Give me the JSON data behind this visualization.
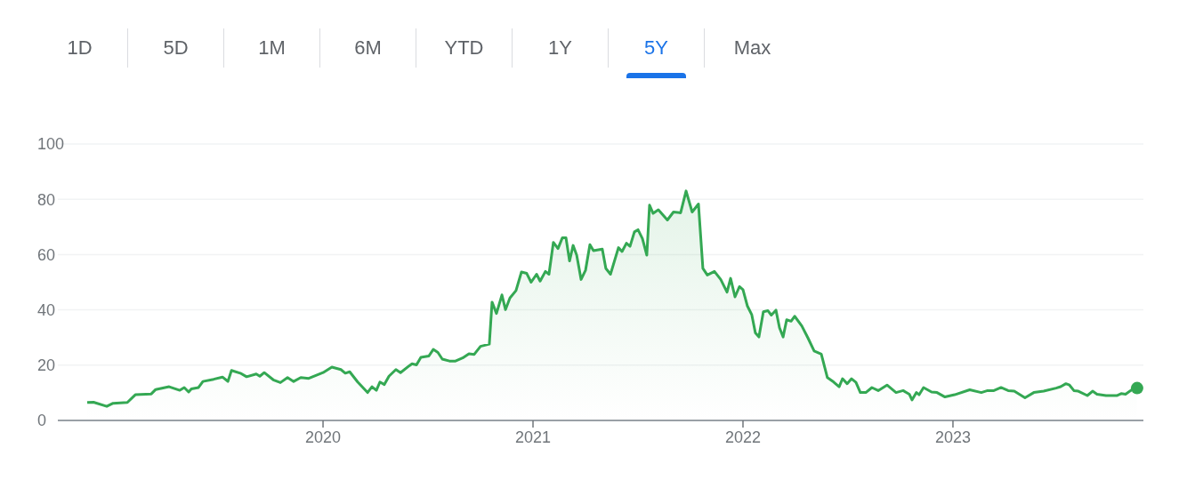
{
  "chart_data": {
    "type": "area",
    "annotations": [
      "1D",
      "5D",
      "1M",
      "6M",
      "YTD",
      "1Y",
      "5Y",
      "Max"
    ],
    "x": [
      2018.877,
      2018.907,
      2018.97,
      2019.0,
      2019.068,
      2019.106,
      2019.182,
      2019.203,
      2019.267,
      2019.318,
      2019.339,
      2019.36,
      2019.373,
      2019.407,
      2019.428,
      2019.479,
      2019.521,
      2019.547,
      2019.564,
      2019.606,
      2019.636,
      2019.682,
      2019.699,
      2019.72,
      2019.763,
      2019.797,
      2019.831,
      2019.86,
      2019.894,
      2019.932,
      2020.0,
      2020.042,
      2020.085,
      2020.106,
      2020.127,
      2020.165,
      2020.212,
      2020.233,
      2020.254,
      2020.271,
      2020.292,
      2020.314,
      2020.347,
      2020.369,
      2020.411,
      2020.424,
      2020.445,
      2020.466,
      2020.504,
      2020.525,
      2020.547,
      2020.568,
      2020.602,
      2020.631,
      2020.665,
      2020.695,
      2020.72,
      2020.75,
      2020.792,
      2020.805,
      2020.826,
      2020.852,
      2020.869,
      2020.89,
      2020.919,
      2020.945,
      2020.97,
      2020.991,
      2021.017,
      2021.034,
      2021.059,
      2021.076,
      2021.097,
      2021.119,
      2021.14,
      2021.157,
      2021.174,
      2021.191,
      2021.208,
      2021.229,
      2021.25,
      2021.271,
      2021.288,
      2021.33,
      2021.347,
      2021.369,
      2021.407,
      2021.424,
      2021.445,
      2021.462,
      2021.483,
      2021.5,
      2021.521,
      2021.542,
      2021.555,
      2021.572,
      2021.597,
      2021.64,
      2021.669,
      2021.703,
      2021.729,
      2021.758,
      2021.788,
      2021.809,
      2021.83,
      2021.864,
      2021.894,
      2021.924,
      2021.941,
      2021.962,
      2021.983,
      2022.0,
      2022.021,
      2022.042,
      2022.059,
      2022.076,
      2022.097,
      2022.119,
      2022.135,
      2022.157,
      2022.174,
      2022.191,
      2022.208,
      2022.229,
      2022.246,
      2022.28,
      2022.309,
      2022.339,
      2022.373,
      2022.402,
      2022.432,
      2022.458,
      2022.474,
      2022.496,
      2022.517,
      2022.538,
      2022.559,
      2022.585,
      2022.614,
      2022.644,
      2022.686,
      2022.729,
      2022.763,
      2022.792,
      2022.805,
      2022.826,
      2022.839,
      2022.86,
      2022.898,
      2022.924,
      2022.962,
      2023.008,
      2023.08,
      2023.135,
      2023.165,
      2023.195,
      2023.229,
      2023.263,
      2023.292,
      2023.343,
      2023.385,
      2023.432,
      2023.491,
      2023.513,
      2023.538,
      2023.555,
      2023.576,
      2023.597,
      2023.64,
      2023.665,
      2023.686,
      2023.729,
      2023.78,
      2023.801,
      2023.822,
      2023.852,
      2023.877
    ],
    "series": [
      {
        "color": "#34a853",
        "values": [
          6.5,
          6.6,
          5.1,
          6.2,
          6.5,
          9.3,
          9.6,
          11.2,
          12.2,
          10.9,
          11.9,
          10.3,
          11.4,
          11.9,
          14.1,
          14.9,
          15.7,
          14.1,
          18.1,
          17.1,
          15.8,
          16.8,
          16.0,
          17.3,
          14.7,
          13.7,
          15.5,
          14.1,
          15.5,
          15.2,
          17.3,
          19.3,
          18.4,
          17.1,
          17.6,
          13.9,
          10.1,
          12.2,
          10.9,
          13.9,
          13.0,
          16.0,
          18.4,
          17.3,
          19.8,
          20.5,
          20.1,
          22.8,
          23.3,
          25.7,
          24.6,
          22.2,
          21.5,
          21.5,
          22.6,
          24.1,
          23.9,
          26.8,
          27.6,
          42.8,
          38.7,
          45.4,
          40.1,
          44.3,
          47.0,
          53.7,
          53.2,
          50.0,
          52.9,
          50.4,
          53.9,
          52.9,
          64.4,
          62.2,
          66.1,
          66.1,
          57.7,
          63.3,
          59.8,
          51.0,
          54.3,
          63.6,
          61.4,
          62.0,
          55.0,
          52.9,
          62.5,
          61.1,
          64.1,
          63.0,
          68.2,
          69.0,
          65.8,
          59.8,
          77.9,
          74.9,
          76.2,
          72.5,
          75.4,
          75.1,
          83.0,
          75.4,
          78.3,
          55.0,
          52.6,
          53.9,
          51.0,
          46.4,
          51.4,
          44.7,
          48.4,
          47.3,
          41.4,
          38.2,
          31.7,
          30.2,
          39.3,
          39.7,
          38.1,
          39.9,
          33.5,
          30.2,
          36.4,
          35.9,
          37.7,
          34.2,
          29.9,
          25.1,
          24.0,
          15.5,
          13.9,
          12.2,
          15.1,
          13.3,
          15.1,
          13.8,
          10.1,
          10.1,
          11.9,
          10.8,
          12.8,
          10.1,
          10.8,
          9.5,
          7.4,
          10.1,
          9.3,
          11.9,
          10.3,
          10.1,
          8.5,
          9.3,
          11.1,
          10.1,
          10.8,
          10.8,
          11.9,
          10.8,
          10.6,
          8.2,
          10.1,
          10.6,
          11.7,
          12.2,
          13.3,
          12.8,
          10.8,
          10.6,
          9.0,
          10.6,
          9.5,
          9.0,
          9.0,
          9.7,
          9.5,
          11.1,
          11.7
        ]
      }
    ],
    "xlim": [
      2018.737,
      2023.907
    ],
    "xticks": [
      2020,
      2021,
      2022,
      2023
    ],
    "ylim": [
      0,
      100
    ],
    "yticks": [
      0,
      20,
      40,
      60,
      80,
      100
    ],
    "grid": "y",
    "marker": "none",
    "line_style": "solid"
  }
}
